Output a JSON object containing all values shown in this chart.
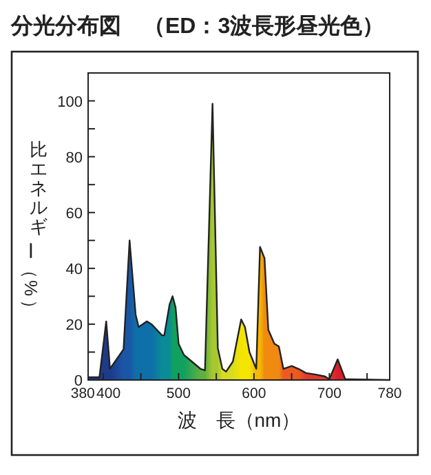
{
  "chart_data": {
    "type": "area",
    "title": "分光分布図　（ED：3波長形昼光色）",
    "xlabel": "波　長（nm）",
    "ylabel": "比エネルギー（%）",
    "xlim": [
      380,
      780
    ],
    "xticks": [
      380,
      400,
      {
        "value": 450,
        "label": null
      },
      500,
      {
        "value": 550,
        "label": null
      },
      600,
      {
        "value": 650,
        "label": null
      },
      700,
      {
        "value": 750,
        "label": null
      },
      780
    ],
    "ylim": [
      0,
      110
    ],
    "yticks": [
      0,
      {
        "value": 10,
        "label": null
      },
      20,
      {
        "value": 30,
        "label": null
      },
      40,
      {
        "value": 50,
        "label": null
      },
      60,
      {
        "value": 70,
        "label": null
      },
      80,
      {
        "value": 90,
        "label": null
      },
      100
    ],
    "series": [
      {
        "color": "#222222",
        "x": [
          380,
          395,
          404,
          409,
          427,
          435,
          443,
          447,
          458,
          464,
          478,
          481,
          488,
          492,
          496,
          500,
          507,
          529,
          535,
          545,
          552,
          558,
          563,
          572,
          583,
          588,
          594,
          603,
          608,
          614,
          619,
          627,
          633,
          639,
          650,
          659,
          669,
          681,
          694,
          700,
          711,
          721,
          780
        ],
        "values": [
          1,
          1,
          21,
          4,
          11,
          50,
          23.5,
          19,
          21,
          20,
          16,
          16,
          27,
          30,
          26,
          13,
          9,
          4,
          3.5,
          99,
          11.5,
          4,
          3,
          6.6,
          21.7,
          19,
          10,
          4,
          47.7,
          43.6,
          18,
          13,
          12,
          4,
          5,
          4,
          2.5,
          2,
          1.3,
          0.3,
          7.4,
          0.3,
          0
        ],
        "colors": [
          "#1e3a8a",
          "#1e3a8a",
          "#1e3a8a",
          "#1e3a8a",
          "#1a56a5",
          "#1a56a5",
          "#0f6fa8",
          "#0f6fa8",
          "#0f6fa8",
          "#0f6fa8",
          "#0a8c98",
          "#0a8c98",
          "#0a8c98",
          "#10a060",
          "#10a060",
          "#10a060",
          "#10a060",
          "#5fb040",
          "#5fb040",
          "#a8c830",
          "#a8c830",
          "#d8dc20",
          "#d8dc20",
          "#d8dc20",
          "#f5e400",
          "#f5e400",
          "#f5e400",
          "#f5b800",
          "#f5b800",
          "#f08a10",
          "#f08a10",
          "#f08a10",
          "#f08a10",
          "#ec5a20",
          "#ec5a20",
          "#ec5a20",
          "#e23a2a",
          "#e23a2a",
          "#e23a2a",
          "#e23a2a",
          "#d81e2a",
          "#d81e2a",
          "#d81e2a"
        ]
      }
    ]
  }
}
